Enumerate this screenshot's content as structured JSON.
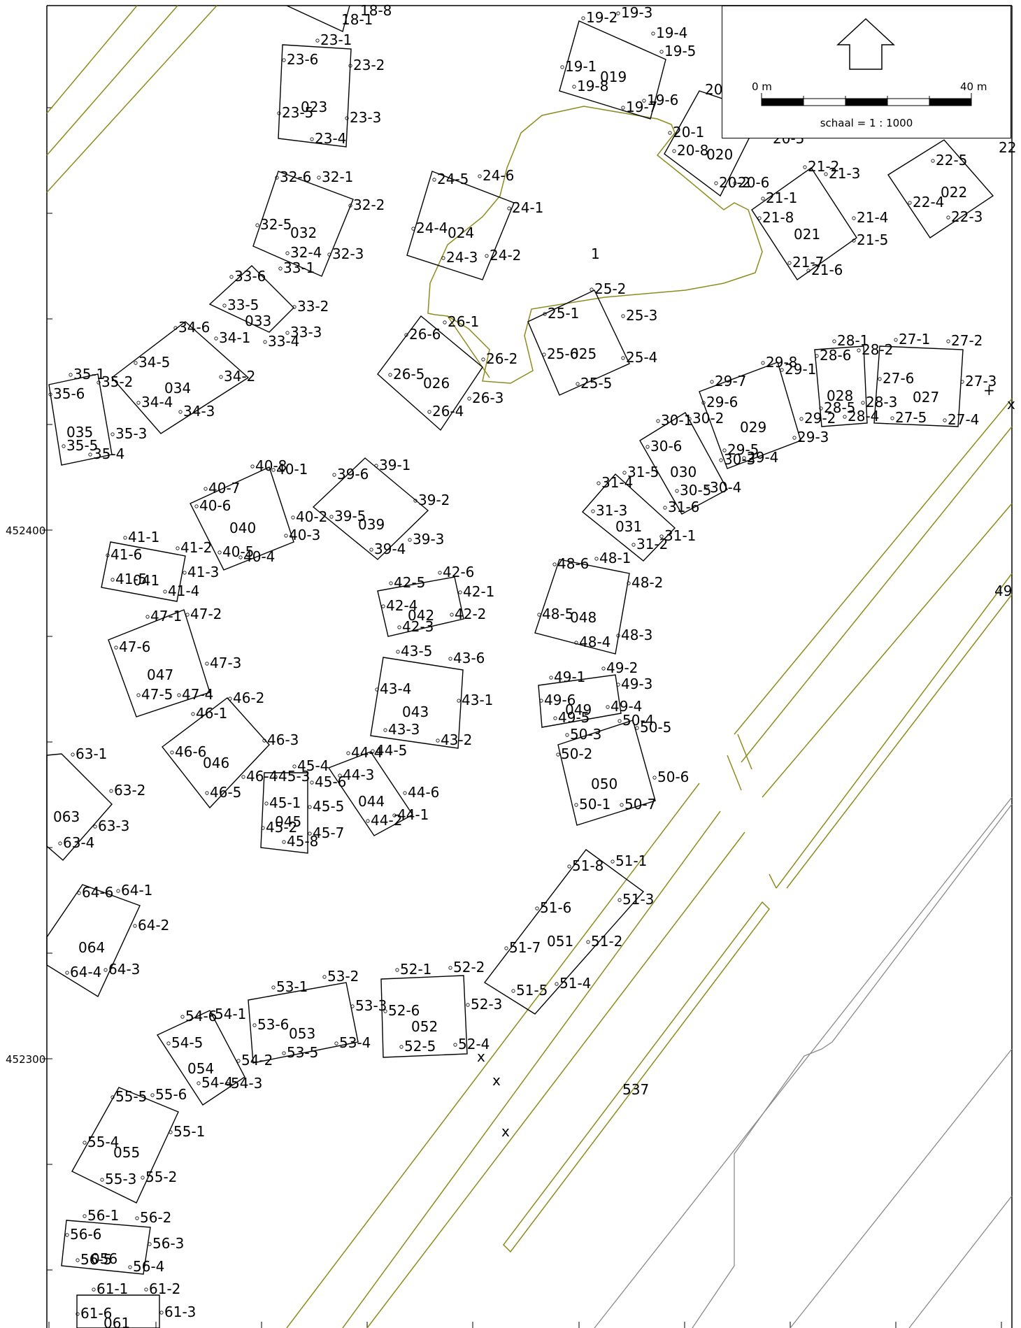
{
  "map": {
    "axis_labels": {
      "y_upper": "452400",
      "y_lower": "452300"
    },
    "legend": {
      "scale_start": "0 m",
      "scale_end": "40 m",
      "scale_text": "schaal = 1 : 1000",
      "arrow": "north-arrow-icon"
    },
    "area_label": "1",
    "road_label": "537",
    "colors": {
      "parcel": "#000000",
      "topography": "#8c8c1e",
      "secondary": "#8a8a8a"
    },
    "buildings": [
      {
        "id": "019",
        "corners": [
          "19-1",
          "19-2",
          "19-3",
          "19-4",
          "19-5",
          "19-6",
          "19-7",
          "19-8"
        ]
      },
      {
        "id": "020",
        "corners": [
          "20-1",
          "20-2",
          "20-6",
          "20-8"
        ]
      },
      {
        "id": "021",
        "corners": [
          "21-1",
          "21-2",
          "21-3",
          "21-4",
          "21-5",
          "21-6",
          "21-7",
          "21-8"
        ]
      },
      {
        "id": "022",
        "corners": [
          "22-3",
          "22-4",
          "22-5"
        ]
      },
      {
        "id": "023",
        "corners": [
          "23-1",
          "23-2",
          "23-3",
          "23-4",
          "23-5",
          "23-6"
        ]
      },
      {
        "id": "024",
        "corners": [
          "24-1",
          "24-2",
          "24-3",
          "24-4",
          "24-5",
          "24-6"
        ]
      },
      {
        "id": "025",
        "corners": [
          "25-1",
          "25-2",
          "25-3",
          "25-4",
          "25-5",
          "25-6"
        ]
      },
      {
        "id": "026",
        "corners": [
          "26-1",
          "26-2",
          "26-3",
          "26-4",
          "26-5",
          "26-6"
        ]
      },
      {
        "id": "027",
        "corners": [
          "27-1",
          "27-2",
          "27-3",
          "27-4",
          "27-5",
          "27-6"
        ]
      },
      {
        "id": "028",
        "corners": [
          "28-1",
          "28-2",
          "28-3",
          "28-4",
          "28-5",
          "28-6"
        ]
      },
      {
        "id": "029",
        "corners": [
          "29-1",
          "29-2",
          "29-3",
          "29-4",
          "29-5",
          "29-6",
          "29-7",
          "29-8"
        ]
      },
      {
        "id": "030",
        "corners": [
          "30-1",
          "30-2",
          "30-3",
          "30-4",
          "30-5",
          "30-6"
        ]
      },
      {
        "id": "031",
        "corners": [
          "31-1",
          "31-2",
          "31-3",
          "31-4",
          "31-5",
          "31-6"
        ]
      },
      {
        "id": "032",
        "corners": [
          "32-1",
          "32-2",
          "32-3",
          "32-4",
          "32-5",
          "32-6"
        ]
      },
      {
        "id": "033",
        "corners": [
          "33-1",
          "33-2",
          "33-3",
          "33-4",
          "33-5",
          "33-6"
        ]
      },
      {
        "id": "034",
        "corners": [
          "34-1",
          "34-2",
          "34-3",
          "34-4",
          "34-5",
          "34-6"
        ]
      },
      {
        "id": "035",
        "corners": [
          "35-1",
          "35-2",
          "35-3",
          "35-4",
          "35-5",
          "35-6"
        ]
      },
      {
        "id": "039",
        "corners": [
          "39-1",
          "39-2",
          "39-3",
          "39-4",
          "39-5",
          "39-6"
        ]
      },
      {
        "id": "040",
        "corners": [
          "40-1",
          "40-2",
          "40-3",
          "40-4",
          "40-5",
          "40-6",
          "40-7",
          "40-8"
        ]
      },
      {
        "id": "041",
        "corners": [
          "41-1",
          "41-2",
          "41-3",
          "41-4",
          "41-5",
          "41-6"
        ]
      },
      {
        "id": "042",
        "corners": [
          "42-1",
          "42-2",
          "42-3",
          "42-4",
          "42-5",
          "42-6"
        ]
      },
      {
        "id": "043",
        "corners": [
          "43-1",
          "43-2",
          "43-3",
          "43-4",
          "43-5",
          "43-6"
        ]
      },
      {
        "id": "044",
        "corners": [
          "44-1",
          "44-2",
          "44-3",
          "44-4",
          "44-5",
          "44-6"
        ]
      },
      {
        "id": "045",
        "corners": [
          "45-1",
          "45-2",
          "45-3",
          "45-4",
          "45-5",
          "45-6",
          "45-7",
          "45-8"
        ]
      },
      {
        "id": "046",
        "corners": [
          "46-1",
          "46-2",
          "46-3",
          "46-4",
          "46-5",
          "46-6"
        ]
      },
      {
        "id": "047",
        "corners": [
          "47-1",
          "47-2",
          "47-3",
          "47-4",
          "47-5",
          "47-6"
        ]
      },
      {
        "id": "048",
        "corners": [
          "48-1",
          "48-2",
          "48-3",
          "48-4",
          "48-5",
          "48-6"
        ]
      },
      {
        "id": "049",
        "corners": [
          "49-1",
          "49-2",
          "49-3",
          "49-4",
          "49-5",
          "49-6"
        ]
      },
      {
        "id": "050",
        "corners": [
          "50-1",
          "50-2",
          "50-3",
          "50-4",
          "50-5",
          "50-6",
          "50-7"
        ]
      },
      {
        "id": "051",
        "corners": [
          "51-1",
          "51-2",
          "51-3",
          "51-4",
          "51-5",
          "51-6",
          "51-7",
          "51-8"
        ]
      },
      {
        "id": "052",
        "corners": [
          "52-1",
          "52-2",
          "52-3",
          "52-4",
          "52-5",
          "52-6"
        ]
      },
      {
        "id": "053",
        "corners": [
          "53-1",
          "53-2",
          "53-3",
          "53-4",
          "53-5",
          "53-6"
        ]
      },
      {
        "id": "054",
        "corners": [
          "54-1",
          "54-2",
          "54-3",
          "54-4",
          "54-5",
          "54-6"
        ]
      },
      {
        "id": "055",
        "corners": [
          "55-1",
          "55-2",
          "55-3",
          "55-4",
          "55-5",
          "55-6"
        ]
      },
      {
        "id": "056",
        "corners": [
          "56-1",
          "56-2",
          "56-3",
          "56-4",
          "56-5",
          "56-6"
        ]
      },
      {
        "id": "061",
        "corners": [
          "61-1",
          "61-2",
          "61-3",
          "61-6"
        ]
      },
      {
        "id": "063",
        "corners": [
          "63-1",
          "63-2",
          "63-3",
          "63-4"
        ]
      },
      {
        "id": "064",
        "corners": [
          "64-1",
          "64-2",
          "64-3",
          "64-4",
          "64-6"
        ]
      }
    ],
    "partial_labels": [
      "18-1",
      "18-8",
      "20",
      "20-5",
      "22",
      "49"
    ]
  }
}
